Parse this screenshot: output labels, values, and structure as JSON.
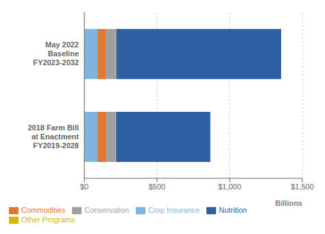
{
  "chart_data": {
    "type": "bar",
    "orientation": "horizontal",
    "stacked": true,
    "categories": [
      "May 2022\nBaseline\nFY2023-2032",
      "2018 Farm Bill\nat Enactment\nFY2019-2028"
    ],
    "series": [
      {
        "name": "Crop Insurance",
        "color": "#7eb5e0",
        "values": [
          90,
          90
        ]
      },
      {
        "name": "Commodities",
        "color": "#e07832",
        "values": [
          60,
          62
        ]
      },
      {
        "name": "Conservation",
        "color": "#a0a0a0",
        "values": [
          63,
          63
        ]
      },
      {
        "name": "Other Programs",
        "color": "#d4b800",
        "values": [
          6,
          3
        ]
      },
      {
        "name": "Nutrition",
        "color": "#2e5fa3",
        "values": [
          1135,
          649
        ]
      }
    ],
    "xlim": [
      0,
      1500
    ],
    "xticks": [
      {
        "value": 0,
        "label": "$0"
      },
      {
        "value": 500,
        "label": "$500"
      },
      {
        "value": 1000,
        "label": "$1,000"
      },
      {
        "value": 1500,
        "label": "$1,500"
      }
    ],
    "xlabel": "Billions",
    "grid": true,
    "legend": "bottom"
  }
}
